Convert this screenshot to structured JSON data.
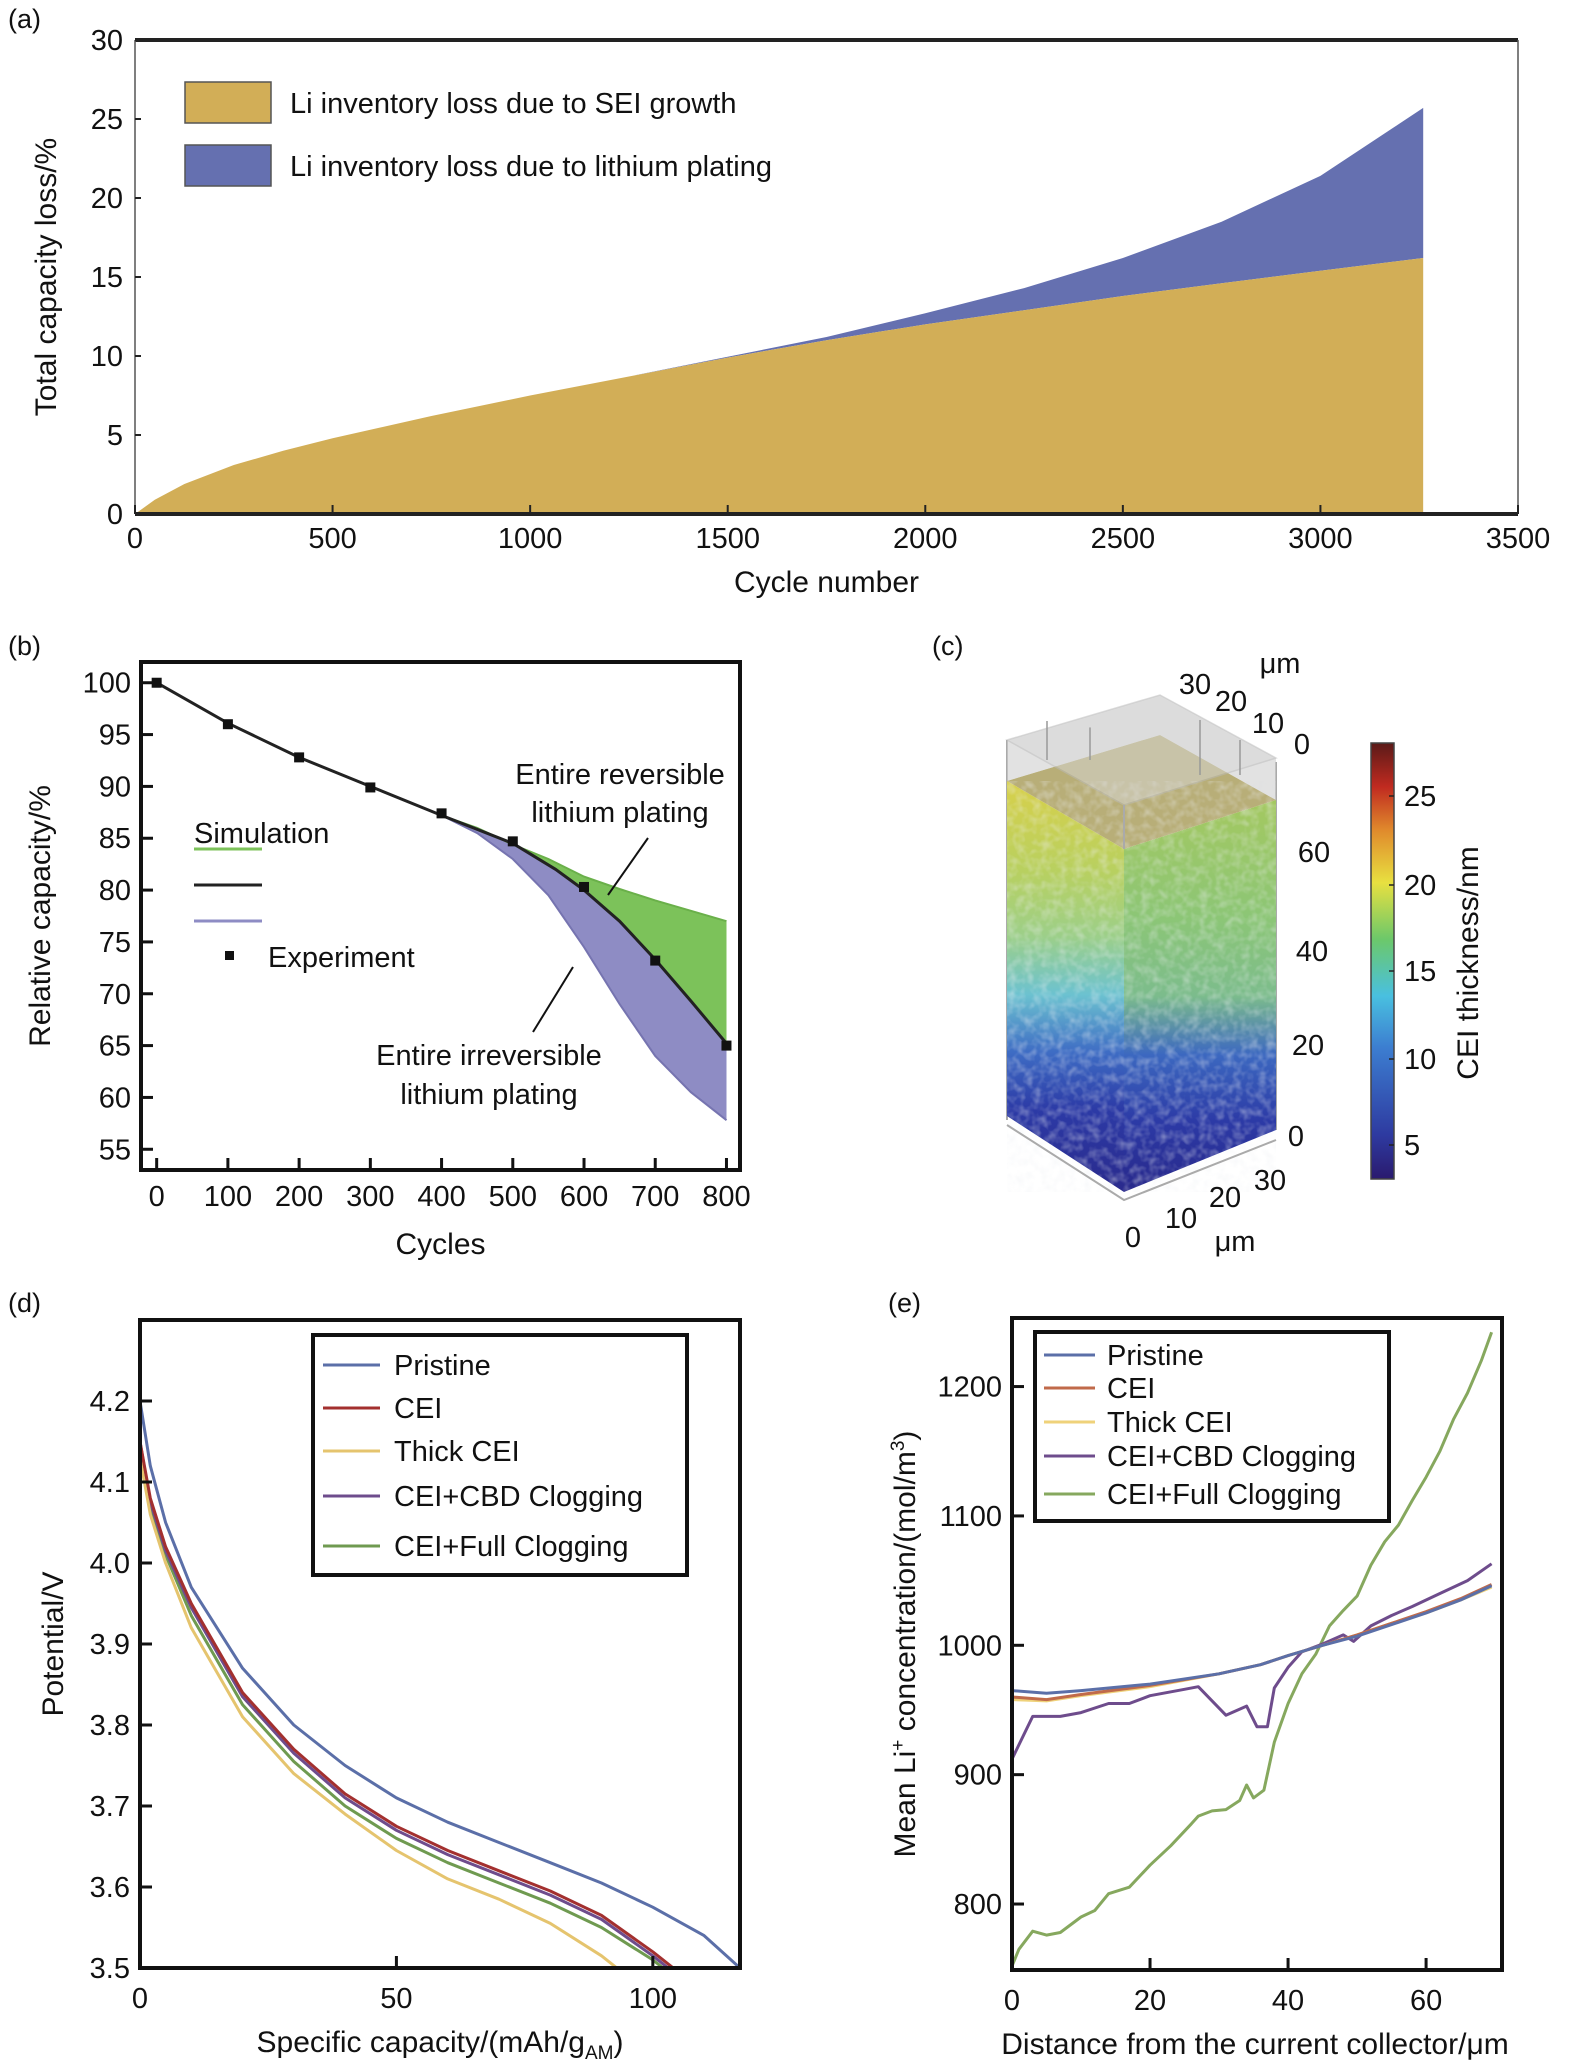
{
  "panel_labels": [
    "(a)",
    "(b)",
    "(c)",
    "(d)",
    "(e)"
  ],
  "chart_data": [
    {
      "panel": "(a)",
      "type": "area",
      "xlabel": "Cycle number",
      "ylabel": "Total capacity loss/%",
      "xlim": [
        0,
        3500
      ],
      "ylim": [
        0,
        30
      ],
      "xticks": [
        "0",
        "500",
        "1000",
        "1500",
        "2000",
        "2500",
        "3000",
        "3500"
      ],
      "yticks": [
        "0",
        "5",
        "10",
        "15",
        "20",
        "25",
        "30"
      ],
      "grid": false,
      "legend_position": "top-left",
      "series": [
        {
          "name": "Li inventory loss due to SEI growth",
          "color": "#d2ae57",
          "x": [
            0,
            50,
            125,
            250,
            375,
            500,
            750,
            1000,
            1250,
            1500,
            1750,
            2000,
            2250,
            2500,
            2750,
            3000,
            3260
          ],
          "y": [
            0,
            0.9,
            1.9,
            3.1,
            4.0,
            4.8,
            6.2,
            7.5,
            8.7,
            9.9,
            11.0,
            12.0,
            12.9,
            13.8,
            14.6,
            15.4,
            16.2
          ]
        },
        {
          "name": "Li inventory loss due to lithium plating",
          "color": "#6570b0",
          "x": [
            0,
            50,
            125,
            250,
            375,
            500,
            750,
            1000,
            1250,
            1500,
            1750,
            2000,
            2250,
            2500,
            2750,
            3000,
            3260
          ],
          "y": [
            0,
            0.9,
            1.9,
            3.1,
            4.0,
            4.8,
            6.2,
            7.5,
            8.7,
            9.95,
            11.2,
            12.7,
            14.3,
            16.2,
            18.5,
            21.4,
            25.7
          ]
        }
      ]
    },
    {
      "panel": "(b)",
      "type": "line",
      "xlabel": "Cycles",
      "ylabel": "Relative capacity/%",
      "xlim": [
        -22,
        819
      ],
      "ylim": [
        53,
        102
      ],
      "xticks": [
        "0",
        "100",
        "200",
        "300",
        "400",
        "500",
        "600",
        "700",
        "800"
      ],
      "yticks": [
        "55",
        "60",
        "65",
        "70",
        "75",
        "80",
        "85",
        "90",
        "95",
        "100"
      ],
      "grid": false,
      "legend_position": "center-left",
      "legend": {
        "simulation_label": "Simulation",
        "experiment_label": "Experiment"
      },
      "annotations": {
        "reversible": [
          "Entire reversible",
          "lithium plating"
        ],
        "irreversible": [
          "Entire irreversible",
          "lithium plating"
        ]
      },
      "series": [
        {
          "role": "simulation",
          "color": "#7cc25a",
          "x": [
            400,
            450,
            500,
            550,
            600,
            650,
            700,
            750,
            800
          ],
          "y": [
            87.2,
            86.0,
            84.4,
            83.0,
            81.3,
            80.1,
            79.0,
            78.0,
            77.0
          ]
        },
        {
          "role": "simulation",
          "color": "#222222",
          "x": [
            0,
            100,
            200,
            300,
            400,
            500,
            560,
            600,
            650,
            700,
            750,
            800
          ],
          "y": [
            100,
            96.1,
            92.8,
            90.0,
            87.2,
            84.5,
            82.0,
            80.0,
            77.0,
            73.3,
            69.3,
            65.2
          ]
        },
        {
          "role": "simulation",
          "color": "#8e8cc4",
          "x": [
            400,
            450,
            500,
            550,
            600,
            650,
            700,
            750,
            800
          ],
          "y": [
            87.2,
            85.5,
            83.0,
            79.5,
            74.5,
            69.0,
            64.0,
            60.5,
            57.8
          ]
        },
        {
          "role": "experiment",
          "color": "#111111",
          "x": [
            0,
            100,
            200,
            300,
            400,
            500,
            600,
            700,
            800
          ],
          "y": [
            100,
            96.0,
            92.8,
            89.9,
            87.4,
            84.7,
            80.3,
            73.2,
            65.0
          ]
        }
      ]
    },
    {
      "panel": "(c)",
      "type": "heatmap",
      "colorbar": {
        "label": "CEI thickness/nm",
        "ticks": [
          "5",
          "10",
          "15",
          "20",
          "25"
        ],
        "colormap": "jet"
      },
      "axes": {
        "vertical_ticks": [
          "0",
          "20",
          "40",
          "60"
        ],
        "top_ticks": [
          "0",
          "10",
          "20",
          "30"
        ],
        "top_unit": "μm",
        "bottom_ticks": [
          "0",
          "10",
          "20",
          "30"
        ],
        "bottom_unit": "μm"
      }
    },
    {
      "panel": "(d)",
      "type": "line",
      "xlabel": {
        "main": "Specific capacity/(mAh/g",
        "sub": "AM",
        "end": ")"
      },
      "ylabel": "Potential/V",
      "xlim": [
        0,
        117
      ],
      "ylim": [
        3.5,
        4.3
      ],
      "xticks": [
        "0",
        "50",
        "100"
      ],
      "yticks": [
        "3.5",
        "3.6",
        "3.7",
        "3.8",
        "3.9",
        "4.0",
        "4.1",
        "4.2"
      ],
      "grid": false,
      "legend_position": "top-right",
      "series": [
        {
          "name": "Pristine",
          "color": "#5b6fa8",
          "x": [
            0,
            2,
            5,
            10,
            20,
            30,
            40,
            50,
            60,
            70,
            80,
            90,
            100,
            110,
            117
          ],
          "y": [
            4.2,
            4.12,
            4.05,
            3.97,
            3.87,
            3.8,
            3.75,
            3.71,
            3.68,
            3.655,
            3.63,
            3.605,
            3.575,
            3.54,
            3.5
          ]
        },
        {
          "name": "CEI",
          "color": "#a3302f",
          "x": [
            0,
            2,
            5,
            10,
            20,
            30,
            40,
            50,
            60,
            70,
            80,
            90,
            100,
            104
          ],
          "y": [
            4.15,
            4.08,
            4.02,
            3.95,
            3.84,
            3.77,
            3.715,
            3.675,
            3.645,
            3.62,
            3.595,
            3.565,
            3.52,
            3.5
          ]
        },
        {
          "name": "Thick CEI",
          "color": "#e5c46e",
          "x": [
            0,
            2,
            5,
            10,
            20,
            30,
            40,
            50,
            60,
            70,
            80,
            90,
            93
          ],
          "y": [
            4.13,
            4.06,
            4.0,
            3.92,
            3.81,
            3.74,
            3.69,
            3.645,
            3.61,
            3.585,
            3.555,
            3.515,
            3.5
          ]
        },
        {
          "name": "CEI+CBD Clogging",
          "color": "#6e4c8c",
          "x": [
            0,
            2,
            5,
            10,
            20,
            30,
            40,
            50,
            60,
            70,
            80,
            90,
            100,
            103
          ],
          "y": [
            4.15,
            4.075,
            4.015,
            3.945,
            3.835,
            3.765,
            3.71,
            3.67,
            3.64,
            3.615,
            3.59,
            3.56,
            3.515,
            3.5
          ]
        },
        {
          "name": "CEI+Full Clogging",
          "color": "#6f9a50",
          "x": [
            0,
            2,
            5,
            10,
            20,
            30,
            40,
            50,
            60,
            70,
            80,
            90,
            100,
            102
          ],
          "y": [
            4.14,
            4.07,
            4.01,
            3.935,
            3.825,
            3.755,
            3.7,
            3.66,
            3.63,
            3.605,
            3.58,
            3.55,
            3.51,
            3.5
          ]
        }
      ]
    },
    {
      "panel": "(e)",
      "type": "line",
      "xlabel": "Distance from the current collector/μm",
      "ylabel": [
        {
          "t": "Mean Li"
        },
        {
          "t": "+",
          "sup": true
        },
        {
          "t": " concentration/(mol/m"
        },
        {
          "t": "3",
          "sup": true
        },
        {
          "t": ")"
        }
      ],
      "xlim": [
        0,
        71
      ],
      "ylim": [
        749,
        1253
      ],
      "xticks": [
        "0",
        "20",
        "40",
        "60"
      ],
      "yticks": [
        "800",
        "900",
        "1000",
        "1100",
        "1200"
      ],
      "grid": false,
      "legend_position": "top-left",
      "series": [
        {
          "name": "Pristine",
          "color": "#5b6fa8",
          "x": [
            0,
            5,
            10,
            20,
            30,
            36,
            40,
            45,
            50,
            55,
            60,
            65,
            69.5
          ],
          "y": [
            965,
            963,
            965,
            970,
            978,
            985,
            992,
            1000,
            1007,
            1016,
            1025,
            1035,
            1046
          ]
        },
        {
          "name": "CEI",
          "color": "#c06a4a",
          "x": [
            0,
            5,
            10,
            20,
            30,
            36,
            40,
            45,
            50,
            55,
            60,
            65,
            69.5
          ],
          "y": [
            960,
            958,
            962,
            969,
            978,
            985,
            992,
            1000,
            1008,
            1017,
            1026,
            1036,
            1047
          ]
        },
        {
          "name": "Thick CEI",
          "color": "#efd27a",
          "x": [
            0,
            5,
            10,
            20,
            30,
            36,
            40,
            45,
            50,
            55,
            60,
            65,
            69.5
          ],
          "y": [
            958,
            957,
            961,
            968,
            978,
            985,
            992,
            1000,
            1008,
            1017,
            1025,
            1035,
            1045
          ]
        },
        {
          "name": "CEI+CBD Clogging",
          "color": "#6e4c8c",
          "x": [
            0,
            3,
            7,
            10,
            14,
            17,
            20,
            25,
            27,
            31,
            34,
            35.5,
            37,
            38,
            40,
            42,
            45,
            48,
            49.5,
            52,
            55,
            58,
            62,
            66,
            69.5
          ],
          "y": [
            912,
            945,
            945,
            948,
            955,
            955,
            961,
            966,
            968,
            946,
            953,
            937,
            937,
            967,
            983,
            995,
            1001,
            1008,
            1003,
            1015,
            1023,
            1030,
            1040,
            1050,
            1063
          ]
        },
        {
          "name": "CEI+Full Clogging",
          "color": "#86a85e",
          "x": [
            0,
            1,
            3,
            5,
            7,
            10,
            12,
            14,
            17,
            20,
            23,
            26,
            27,
            29,
            31,
            33,
            34,
            35,
            36.5,
            38,
            40,
            42,
            44,
            46,
            48,
            50,
            52,
            54,
            56,
            58,
            60,
            62,
            64,
            66,
            68,
            69.5
          ],
          "y": [
            752,
            765,
            779,
            776,
            778,
            790,
            795,
            808,
            813,
            830,
            845,
            862,
            868,
            872,
            873,
            880,
            892,
            882,
            888,
            925,
            955,
            978,
            993,
            1015,
            1027,
            1038,
            1062,
            1080,
            1093,
            1112,
            1130,
            1150,
            1175,
            1195,
            1220,
            1242
          ]
        }
      ]
    }
  ]
}
